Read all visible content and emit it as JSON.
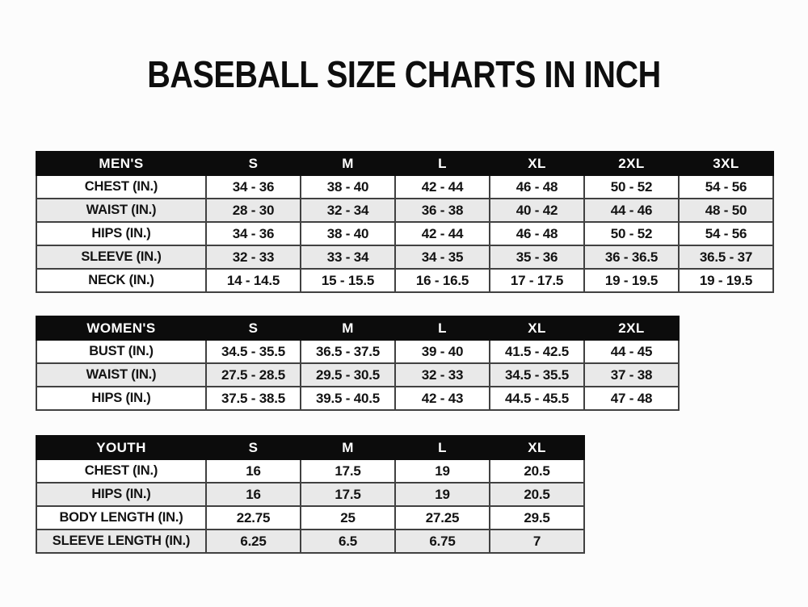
{
  "title": "BASEBALL SIZE CHARTS IN INCH",
  "unit": "IN.",
  "colors": {
    "header_bg": "#0c0c0c",
    "header_text": "#ffffff",
    "stripe_row": "#e9e9e9",
    "grid_border": "#414141",
    "text": "#131313",
    "background": "#fcfcfc"
  },
  "tables": [
    {
      "name": "mens",
      "header": [
        "MEN'S",
        "S",
        "M",
        "L",
        "XL",
        "2XL",
        "3XL"
      ],
      "rows": [
        {
          "label": "CHEST (IN.)",
          "values": [
            "34 - 36",
            "38 - 40",
            "42 - 44",
            "46 - 48",
            "50 - 52",
            "54 - 56"
          ]
        },
        {
          "label": "WAIST (IN.)",
          "values": [
            "28 - 30",
            "32 - 34",
            "36 - 38",
            "40 - 42",
            "44 - 46",
            "48 - 50"
          ]
        },
        {
          "label": "HIPS (IN.)",
          "values": [
            "34 - 36",
            "38 - 40",
            "42 - 44",
            "46 - 48",
            "50 - 52",
            "54 - 56"
          ]
        },
        {
          "label": "SLEEVE (IN.)",
          "values": [
            "32 - 33",
            "33 - 34",
            "34 - 35",
            "35 - 36",
            "36 - 36.5",
            "36.5 - 37"
          ]
        },
        {
          "label": "NECK (IN.)",
          "values": [
            "14 - 14.5",
            "15 - 15.5",
            "16 - 16.5",
            "17 - 17.5",
            "19 - 19.5",
            "19 - 19.5"
          ]
        }
      ]
    },
    {
      "name": "womens",
      "header": [
        "WOMEN'S",
        "S",
        "M",
        "L",
        "XL",
        "2XL"
      ],
      "rows": [
        {
          "label": "BUST (IN.)",
          "values": [
            "34.5 - 35.5",
            "36.5 - 37.5",
            "39 - 40",
            "41.5 - 42.5",
            "44 - 45"
          ]
        },
        {
          "label": "WAIST (IN.)",
          "values": [
            "27.5 - 28.5",
            "29.5 - 30.5",
            "32 - 33",
            "34.5 - 35.5",
            "37 - 38"
          ]
        },
        {
          "label": "HIPS (IN.)",
          "values": [
            "37.5 - 38.5",
            "39.5 - 40.5",
            "42 - 43",
            "44.5 - 45.5",
            "47 - 48"
          ]
        }
      ]
    },
    {
      "name": "youth",
      "header": [
        "YOUTH",
        "S",
        "M",
        "L",
        "XL"
      ],
      "rows": [
        {
          "label": "CHEST (IN.)",
          "values": [
            "16",
            "17.5",
            "19",
            "20.5"
          ]
        },
        {
          "label": "HIPS (IN.)",
          "values": [
            "16",
            "17.5",
            "19",
            "20.5"
          ]
        },
        {
          "label": "BODY LENGTH (IN.)",
          "values": [
            "22.75",
            "25",
            "27.25",
            "29.5"
          ]
        },
        {
          "label": "SLEEVE LENGTH (IN.)",
          "values": [
            "6.25",
            "6.5",
            "6.75",
            "7"
          ]
        }
      ]
    }
  ]
}
